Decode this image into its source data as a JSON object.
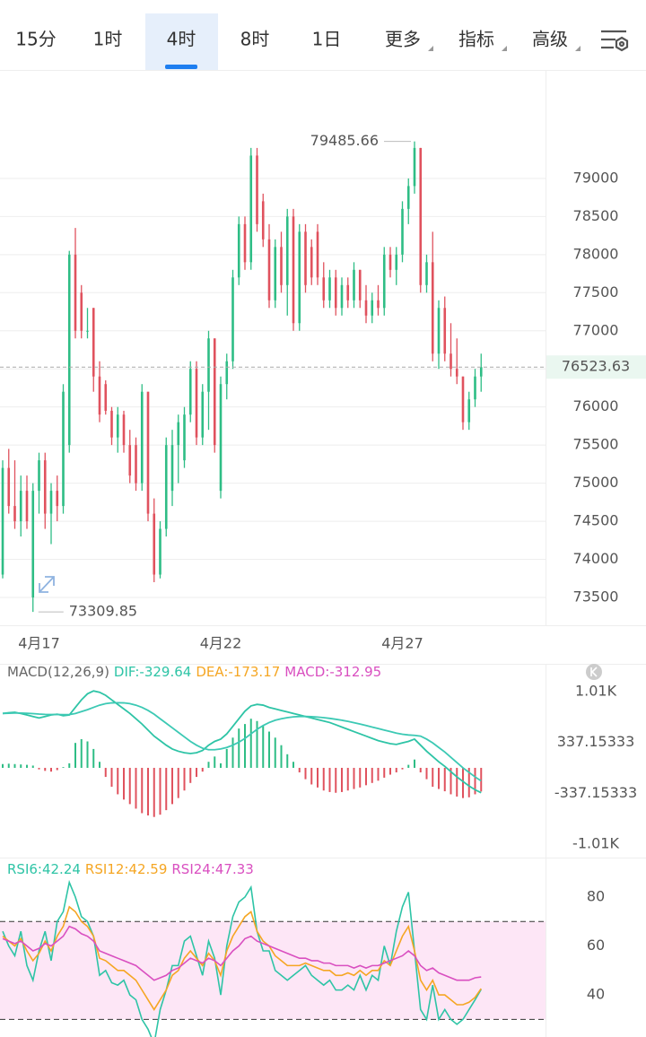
{
  "tabs": [
    {
      "label": "15分"
    },
    {
      "label": "1时"
    },
    {
      "label": "4时",
      "active": true
    },
    {
      "label": "8时"
    },
    {
      "label": "1日"
    },
    {
      "label": "更多",
      "dropdown": true
    },
    {
      "label": "指标",
      "dropdown": true
    },
    {
      "label": "高级",
      "dropdown": true
    }
  ],
  "chart_data": [
    {
      "type": "candlestick",
      "categories": [
        null,
        null,
        null,
        null,
        null,
        null,
        "4月17",
        null,
        null,
        null,
        null,
        null,
        null,
        null,
        null,
        null,
        null,
        null,
        null,
        null,
        null,
        null,
        null,
        null,
        null,
        null,
        null,
        null,
        null,
        null,
        null,
        null,
        null,
        null,
        null,
        null,
        "4月22",
        null,
        null,
        null,
        null,
        null,
        null,
        null,
        null,
        null,
        null,
        null,
        null,
        null,
        null,
        null,
        null,
        null,
        null,
        null,
        null,
        null,
        null,
        null,
        null,
        null,
        null,
        null,
        null,
        null,
        "4月27",
        null,
        null,
        null,
        null,
        null,
        null,
        null,
        null,
        null,
        null,
        null,
        null,
        null
      ],
      "candles": [
        [
          73800,
          75300,
          73750,
          75200
        ],
        [
          75200,
          75450,
          74600,
          74700
        ],
        [
          74700,
          75300,
          74400,
          74500
        ],
        [
          74500,
          75100,
          74300,
          74900
        ],
        [
          74900,
          75100,
          74400,
          74500
        ],
        [
          73500,
          75000,
          73309.85,
          74900
        ],
        [
          74900,
          75400,
          74600,
          75300
        ],
        [
          75300,
          75400,
          74400,
          74600
        ],
        [
          74600,
          75000,
          74200,
          74900
        ],
        [
          74900,
          75100,
          74500,
          74700
        ],
        [
          74700,
          76300,
          74600,
          76200
        ],
        [
          75500,
          78050,
          75400,
          78000
        ],
        [
          78000,
          78350,
          76900,
          77000
        ],
        [
          77500,
          77600,
          76900,
          77000
        ],
        [
          77000,
          77300,
          76900,
          77000
        ],
        [
          77300,
          77300,
          76200,
          76400
        ],
        [
          76400,
          76600,
          75800,
          75900
        ],
        [
          76300,
          76350,
          75900,
          75950
        ],
        [
          75950,
          76000,
          75500,
          75600
        ],
        [
          75600,
          76000,
          75400,
          75900
        ],
        [
          75900,
          75950,
          75400,
          75500
        ],
        [
          75500,
          75700,
          75000,
          75100
        ],
        [
          75500,
          75600,
          74900,
          75000
        ],
        [
          75000,
          76300,
          74900,
          76200
        ],
        [
          76200,
          76200,
          74500,
          74600
        ],
        [
          74600,
          74800,
          73700,
          73800
        ],
        [
          73800,
          74500,
          73750,
          74400
        ],
        [
          74400,
          75600,
          74300,
          75500
        ],
        [
          74900,
          75700,
          74700,
          75500
        ],
        [
          75500,
          75900,
          75000,
          75800
        ],
        [
          75300,
          76000,
          75200,
          75900
        ],
        [
          75900,
          76600,
          75800,
          76500
        ],
        [
          76500,
          76600,
          75500,
          75600
        ],
        [
          75600,
          76300,
          75500,
          76200
        ],
        [
          76200,
          77000,
          75700,
          76900
        ],
        [
          76900,
          76900,
          75400,
          75500
        ],
        [
          74900,
          76400,
          74800,
          76300
        ],
        [
          76300,
          76700,
          76100,
          76600
        ],
        [
          76600,
          77800,
          76500,
          77700
        ],
        [
          77700,
          78500,
          77600,
          78400
        ],
        [
          78400,
          78500,
          77800,
          77900
        ],
        [
          77900,
          79400,
          77800,
          79300
        ],
        [
          79300,
          79400,
          78300,
          78400
        ],
        [
          78700,
          78800,
          78100,
          78200
        ],
        [
          78200,
          78400,
          77300,
          77400
        ],
        [
          77400,
          78200,
          77300,
          78100
        ],
        [
          78100,
          78300,
          77500,
          77600
        ],
        [
          77600,
          78600,
          77200,
          78500
        ],
        [
          78500,
          78600,
          77000,
          77100
        ],
        [
          77100,
          78400,
          77000,
          78300
        ],
        [
          78300,
          78400,
          77500,
          77600
        ],
        [
          78100,
          78200,
          77600,
          77700
        ],
        [
          78300,
          78400,
          77600,
          77700
        ],
        [
          77700,
          77900,
          77300,
          77400
        ],
        [
          77400,
          77800,
          77300,
          77700
        ],
        [
          77700,
          77800,
          77200,
          77300
        ],
        [
          77300,
          77700,
          77200,
          77600
        ],
        [
          77600,
          77700,
          77300,
          77400
        ],
        [
          77400,
          77900,
          77300,
          77800
        ],
        [
          77800,
          77800,
          77300,
          77400
        ],
        [
          77400,
          77600,
          77100,
          77200
        ],
        [
          77200,
          77500,
          77100,
          77400
        ],
        [
          77400,
          77600,
          77200,
          77300
        ],
        [
          77300,
          78100,
          77200,
          78000
        ],
        [
          78000,
          78100,
          77700,
          77800
        ],
        [
          77800,
          78100,
          77600,
          78000
        ],
        [
          78000,
          78700,
          77900,
          78600
        ],
        [
          78600,
          79000,
          78400,
          78900
        ],
        [
          78900,
          79485.66,
          78800,
          79400
        ],
        [
          79400,
          79400,
          77500,
          77600
        ],
        [
          77600,
          78000,
          77500,
          77900
        ],
        [
          77900,
          78300,
          76600,
          76700
        ],
        [
          76700,
          77400,
          76500,
          77300
        ],
        [
          77300,
          77450,
          76600,
          76700
        ],
        [
          76700,
          77100,
          76400,
          76500
        ],
        [
          76500,
          76900,
          76300,
          76400
        ],
        [
          76400,
          76400,
          75700,
          75800
        ],
        [
          75800,
          76200,
          75700,
          76100
        ],
        [
          76100,
          76500,
          76000,
          76400
        ],
        [
          76400,
          76700,
          76200,
          76523.63
        ]
      ],
      "up_color": "#2ebd85",
      "down_color": "#e0525e",
      "last_price_color": "#2ebd85",
      "ylim": [
        73135,
        80400
      ],
      "yticks": [
        73500,
        74000,
        74500,
        75000,
        75500,
        76000,
        76500,
        77000,
        77500,
        78000,
        78500,
        79000
      ],
      "grid": true
    },
    {
      "type": "macd",
      "title": "MACD(12,26,9)",
      "series": [
        {
          "name": "DIF:-329.64",
          "color": "#2ec4a6",
          "legend_color": "#2ec4a6",
          "values": [
            720,
            730,
            735,
            720,
            700,
            680,
            660,
            680,
            700,
            710,
            690,
            700,
            800,
            900,
            980,
            1018,
            1000,
            960,
            900,
            840,
            780,
            720,
            650,
            580,
            500,
            420,
            360,
            300,
            250,
            220,
            200,
            190,
            200,
            230,
            300,
            350,
            380,
            450,
            550,
            650,
            750,
            820,
            840,
            830,
            800,
            780,
            760,
            740,
            720,
            700,
            680,
            660,
            640,
            620,
            600,
            570,
            540,
            510,
            480,
            450,
            420,
            390,
            360,
            340,
            320,
            310,
            330,
            350,
            380,
            300,
            220,
            150,
            80,
            20,
            -50,
            -120,
            -180,
            -240,
            -290,
            -329.64
          ]
        },
        {
          "name": "DEA:-173.17",
          "color": "#3cc9b4",
          "legend_color": "#f5a623",
          "values": [
            720,
            722,
            725,
            725,
            722,
            718,
            712,
            708,
            706,
            706,
            705,
            705,
            720,
            745,
            770,
            800,
            830,
            850,
            860,
            862,
            860,
            850,
            830,
            800,
            760,
            710,
            650,
            590,
            530,
            470,
            410,
            350,
            300,
            260,
            240,
            240,
            250,
            270,
            300,
            340,
            390,
            450,
            510,
            560,
            600,
            630,
            650,
            665,
            675,
            680,
            680,
            678,
            672,
            665,
            655,
            643,
            630,
            615,
            598,
            580,
            560,
            540,
            520,
            500,
            480,
            460,
            445,
            435,
            430,
            420,
            380,
            330,
            270,
            210,
            140,
            70,
            0,
            -60,
            -120,
            -173.17
          ]
        },
        {
          "name": "MACD:-312.95",
          "histogram": true,
          "legend_color": "#d94fc0",
          "up_color": "#2ebd85",
          "down_color": "#e0525e",
          "values": [
            50,
            55,
            50,
            45,
            40,
            30,
            -20,
            -40,
            -50,
            -30,
            10,
            60,
            330,
            380,
            350,
            250,
            80,
            -120,
            -250,
            -350,
            -420,
            -480,
            -540,
            -600,
            -630,
            -650,
            -620,
            -560,
            -480,
            -400,
            -300,
            -200,
            -120,
            -50,
            80,
            150,
            60,
            250,
            400,
            520,
            580,
            650,
            620,
            560,
            480,
            400,
            300,
            180,
            80,
            -60,
            -150,
            -220,
            -260,
            -300,
            -320,
            -330,
            -320,
            -300,
            -280,
            -260,
            -230,
            -200,
            -170,
            -130,
            -90,
            -60,
            -20,
            40,
            110,
            -60,
            -150,
            -250,
            -280,
            -310,
            -350,
            -380,
            -400,
            -390,
            -350,
            -312.95
          ]
        }
      ],
      "ylim": [
        -1176,
        1377
      ],
      "yticks": [
        {
          "value": -1010,
          "label": "-1.01K"
        },
        {
          "value": -337.15333,
          "label": "-337.15333"
        },
        337.15333,
        {
          "value": 1010,
          "label": "1.01K"
        }
      ],
      "grid": false
    },
    {
      "type": "rsi",
      "series": [
        {
          "name": "RSI6:42.24",
          "color": "#2ec4a6",
          "values": [
            66,
            60,
            56,
            66,
            52,
            46,
            58,
            66,
            54,
            70,
            74,
            86,
            80,
            72,
            70,
            64,
            48,
            50,
            45,
            44,
            46,
            40,
            38,
            30,
            26,
            20,
            34,
            42,
            52,
            52,
            62,
            64,
            56,
            48,
            62,
            55,
            40,
            60,
            72,
            78,
            80,
            84,
            66,
            58,
            58,
            50,
            48,
            46,
            48,
            50,
            52,
            48,
            46,
            44,
            46,
            42,
            42,
            44,
            42,
            48,
            42,
            48,
            46,
            60,
            52,
            66,
            76,
            82,
            58,
            34,
            30,
            44,
            30,
            34,
            30,
            28,
            30,
            34,
            38,
            42.24
          ]
        },
        {
          "name": "RSI12:42.59",
          "color": "#f5a623",
          "values": [
            64,
            62,
            60,
            63,
            58,
            54,
            57,
            62,
            58,
            64,
            68,
            76,
            74,
            70,
            68,
            64,
            55,
            54,
            52,
            50,
            50,
            48,
            46,
            42,
            38,
            34,
            38,
            42,
            48,
            50,
            55,
            58,
            55,
            52,
            57,
            54,
            48,
            58,
            64,
            68,
            72,
            74,
            66,
            62,
            60,
            56,
            54,
            52,
            52,
            52,
            53,
            52,
            51,
            50,
            50,
            48,
            48,
            49,
            48,
            50,
            48,
            50,
            50,
            54,
            52,
            58,
            64,
            68,
            58,
            46,
            42,
            46,
            40,
            40,
            38,
            36,
            36,
            37,
            39,
            42.59
          ]
        },
        {
          "name": "RSI24:47.33",
          "color": "#d94fc0",
          "values": [
            63,
            62,
            61,
            62,
            60,
            58,
            59,
            61,
            60,
            62,
            64,
            68,
            67,
            65,
            64,
            62,
            58,
            57,
            56,
            55,
            54,
            53,
            52,
            50,
            48,
            46,
            47,
            48,
            50,
            51,
            53,
            55,
            54,
            53,
            55,
            54,
            52,
            55,
            58,
            60,
            63,
            64,
            62,
            61,
            60,
            59,
            58,
            57,
            56,
            55,
            55,
            54,
            54,
            53,
            53,
            52,
            52,
            52,
            51,
            52,
            51,
            52,
            52,
            53,
            54,
            55,
            56,
            58,
            56,
            52,
            50,
            51,
            49,
            48,
            47,
            46,
            46,
            46,
            47,
            47.33
          ]
        }
      ],
      "bands": [
        30,
        70
      ],
      "band_color": "#fde6f6",
      "ylim": [
        22.8,
        95.4
      ],
      "yticks": [
        40,
        60,
        80
      ],
      "grid": false
    }
  ]
}
